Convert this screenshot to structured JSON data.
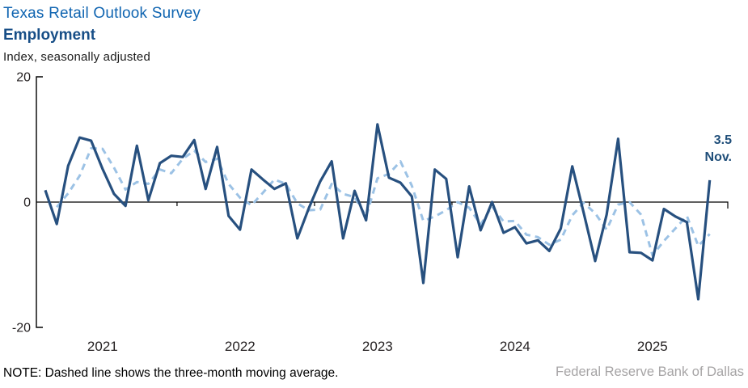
{
  "header": {
    "title": "Texas Retail Outlook Survey",
    "subtitle": "Employment",
    "units": "Index, seasonally adjusted"
  },
  "note": "NOTE: Dashed line shows the three-month moving average.",
  "attribution": "Federal Reserve Bank of Dallas",
  "colors": {
    "title": "#1065B1",
    "subtitle": "#174E87",
    "monthly_line": "#27507F",
    "moving_average_line": "#9CC2E5",
    "axis": "#000000",
    "tick_text": "#231F20",
    "annotation": "#1F4E79",
    "attribution_text": "#A6A4A5"
  },
  "chart_data": {
    "type": "line",
    "title": "Texas Retail Outlook Survey — Employment",
    "ylabel": "Index, seasonally adjusted",
    "ylim": [
      -20,
      20
    ],
    "yticks": [
      20,
      0,
      -20
    ],
    "grid": false,
    "zero_line": true,
    "frequency": "monthly",
    "x_start": "Jan 2021",
    "x_end": "Nov 2025",
    "year_labels": [
      "2021",
      "2022",
      "2023",
      "2024",
      "2025"
    ],
    "legend_position": "none",
    "end_label": {
      "value": "3.5",
      "month": "Nov."
    },
    "series": [
      {
        "name": "monthly index",
        "style": "solid",
        "color": "#27507F",
        "start_index": 0,
        "values": [
          1.9,
          -3.5,
          5.8,
          10.3,
          9.8,
          5.3,
          1.3,
          -0.6,
          9.0,
          0.3,
          6.2,
          7.4,
          7.2,
          9.9,
          2.1,
          8.8,
          -2.2,
          -4.4,
          5.2,
          3.6,
          2.1,
          3.0,
          -5.8,
          -1.0,
          3.3,
          6.5,
          -5.8,
          1.8,
          -2.9,
          12.4,
          3.9,
          3.1,
          0.9,
          -12.9,
          5.2,
          3.7,
          -8.8,
          2.5,
          -4.5,
          0.0,
          -4.9,
          -4.0,
          -6.6,
          -6.1,
          -7.8,
          -4.2,
          5.7,
          -1.7,
          -9.4,
          -2.0,
          10.1,
          -8.0,
          -8.1,
          -9.3,
          -1.1,
          -2.3,
          -3.2,
          -15.5,
          3.5
        ]
      },
      {
        "name": "three-month moving average",
        "style": "dashed",
        "color": "#9CC2E5",
        "start_index": 1,
        "values": [
          -0.8,
          1.4,
          4.2,
          8.6,
          8.5,
          5.5,
          2.0,
          3.2,
          2.9,
          5.2,
          4.6,
          6.9,
          8.2,
          6.4,
          6.9,
          2.9,
          0.7,
          -0.5,
          1.5,
          3.6,
          2.9,
          -0.2,
          -1.3,
          -1.2,
          2.9,
          1.3,
          0.8,
          -2.3,
          3.8,
          4.5,
          6.5,
          2.6,
          -3.0,
          -2.3,
          -1.3,
          0.0,
          -0.9,
          -3.6,
          -0.7,
          -3.1,
          -3.0,
          -5.2,
          -5.6,
          -6.8,
          -6.0,
          -2.1,
          -0.1,
          -1.8,
          -4.4,
          -0.4,
          0.0,
          -2.0,
          -8.5,
          -6.2,
          -4.2,
          -2.2,
          -7.0,
          -5.1
        ]
      }
    ]
  }
}
